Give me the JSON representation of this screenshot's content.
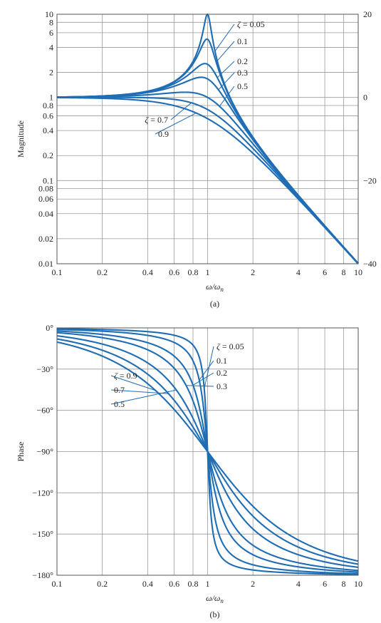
{
  "chart_data": [
    {
      "type": "line",
      "caption": "(a)",
      "xlabel": "ω/ωn",
      "ylabel": "Magnitude",
      "xscale": "log",
      "yscale": "log",
      "xlim": [
        0.1,
        10
      ],
      "ylim": [
        0.01,
        10
      ],
      "x_ticks": [
        0.1,
        0.2,
        0.4,
        0.6,
        0.8,
        1,
        2,
        4,
        6,
        8,
        10
      ],
      "x_tick_labels": [
        "0.1",
        "0.2",
        "0.4",
        "0.6",
        "0.8",
        "1",
        "2",
        "4",
        "6",
        "8",
        "10"
      ],
      "y_ticks": [
        0.01,
        0.02,
        0.04,
        0.06,
        0.08,
        0.1,
        0.2,
        0.4,
        0.6,
        0.8,
        1,
        2,
        4,
        6,
        8,
        10
      ],
      "y_tick_labels": [
        "0.01",
        "0.02",
        "0.04",
        "0.06",
        "0.08",
        "0.1",
        "0.2",
        "0.4",
        "0.6",
        "0.8",
        "1",
        "2",
        "4",
        "6",
        "8",
        "10"
      ],
      "y2_ticks_db": [
        20,
        0,
        -20,
        -40
      ],
      "y2_tick_labels": [
        "20",
        "0",
        "−20",
        "−40"
      ],
      "grid": true,
      "zeta_symbol": "ζ",
      "zeta_values": [
        0.05,
        0.1,
        0.2,
        0.3,
        0.5,
        0.7,
        0.9
      ],
      "zeta_labels": [
        "= 0.05",
        "0.1",
        "0.2",
        "0.3",
        "0.5",
        "= 0.7",
        "0.9"
      ],
      "series": [
        {
          "zeta": 0.05,
          "peak_magnitude": 10.0,
          "x": [
            0.1,
            0.5,
            0.8,
            1,
            1.25,
            2,
            10
          ],
          "y": [
            1.01,
            1.33,
            2.75,
            10.0,
            2.23,
            0.33,
            0.0101
          ]
        },
        {
          "zeta": 0.1,
          "peak_magnitude": 5.03,
          "x": [
            0.1,
            0.5,
            0.8,
            1,
            1.25,
            2,
            10
          ],
          "y": [
            1.01,
            1.33,
            2.6,
            5.0,
            1.99,
            0.33,
            0.0101
          ]
        },
        {
          "zeta": 0.2,
          "peak_magnitude": 2.55,
          "x": [
            0.1,
            0.5,
            0.8,
            1,
            1.25,
            2,
            10
          ],
          "y": [
            1.01,
            1.29,
            2.13,
            2.5,
            1.49,
            0.32,
            0.0101
          ]
        },
        {
          "zeta": 0.3,
          "peak_magnitude": 1.75,
          "x": [
            0.1,
            0.5,
            0.8,
            1,
            1.25,
            2,
            10
          ],
          "y": [
            1.01,
            1.24,
            1.69,
            1.67,
            1.13,
            0.31,
            0.0101
          ]
        },
        {
          "zeta": 0.5,
          "peak_magnitude": 1.15,
          "x": [
            0.1,
            0.5,
            0.8,
            1,
            1.25,
            2,
            10
          ],
          "y": [
            1.01,
            1.11,
            1.1,
            1.0,
            0.73,
            0.28,
            0.0101
          ]
        },
        {
          "zeta": 0.7,
          "peak_magnitude": 1.0,
          "x": [
            0.1,
            0.5,
            0.8,
            1,
            1.25,
            2,
            10
          ],
          "y": [
            1.0,
            0.97,
            0.8,
            0.71,
            0.53,
            0.24,
            0.0101
          ]
        },
        {
          "zeta": 0.9,
          "peak_magnitude": 1.0,
          "x": [
            0.1,
            0.5,
            0.8,
            1,
            1.25,
            2,
            10
          ],
          "y": [
            0.99,
            0.84,
            0.61,
            0.56,
            0.41,
            0.21,
            0.0101
          ]
        }
      ]
    },
    {
      "type": "line",
      "caption": "(b)",
      "xlabel": "ω/ωn",
      "ylabel": "Phase",
      "xscale": "log",
      "xlim": [
        0.1,
        10
      ],
      "ylim": [
        -180,
        0
      ],
      "x_ticks": [
        0.1,
        0.2,
        0.4,
        0.6,
        0.8,
        1,
        2,
        4,
        6,
        8,
        10
      ],
      "x_tick_labels": [
        "0.1",
        "0.2",
        "0.4",
        "0.6",
        "0.8",
        "1",
        "2",
        "4",
        "6",
        "8",
        "10"
      ],
      "y_ticks": [
        0,
        -30,
        -60,
        -90,
        -120,
        -150,
        -180
      ],
      "y_tick_labels": [
        "0°",
        "−30°",
        "−60°",
        "−90°",
        "−120°",
        "−150°",
        "−180°"
      ],
      "grid": true,
      "zeta_symbol": "ζ",
      "zeta_values": [
        0.05,
        0.1,
        0.2,
        0.3,
        0.5,
        0.7,
        0.9
      ],
      "zeta_labels_right": [
        "= 0.05",
        "0.1",
        "0.2",
        "0.3"
      ],
      "zeta_labels_left": [
        "= 0.9",
        "0.7",
        "0.5"
      ],
      "series": [
        {
          "zeta": 0.05,
          "x": [
            0.1,
            0.5,
            0.8,
            1,
            1.25,
            2,
            10
          ],
          "y_deg": [
            -0.6,
            -3.8,
            -15.5,
            -90,
            -164.5,
            -176.2,
            -179.4
          ]
        },
        {
          "zeta": 0.1,
          "x": [
            0.1,
            0.5,
            0.8,
            1,
            1.25,
            2,
            10
          ],
          "y_deg": [
            -1.2,
            -7.6,
            -29.4,
            -90,
            -150.6,
            -172.4,
            -178.8
          ]
        },
        {
          "zeta": 0.2,
          "x": [
            0.1,
            0.5,
            0.8,
            1,
            1.25,
            2,
            10
          ],
          "y_deg": [
            -2.3,
            -14.9,
            -48.4,
            -90,
            -131.6,
            -165.1,
            -177.7
          ]
        },
        {
          "zeta": 0.3,
          "x": [
            0.1,
            0.5,
            0.8,
            1,
            1.25,
            2,
            10
          ],
          "y_deg": [
            -3.5,
            -21.8,
            -59.3,
            -90,
            -120.7,
            -158.2,
            -176.5
          ]
        },
        {
          "zeta": 0.5,
          "x": [
            0.1,
            0.5,
            0.8,
            1,
            1.25,
            2,
            10
          ],
          "y_deg": [
            -5.8,
            -33.7,
            -77.3,
            -90,
            -102.7,
            -146.3,
            -174.2
          ]
        },
        {
          "zeta": 0.7,
          "x": [
            0.1,
            0.5,
            0.8,
            1,
            1.25,
            2,
            10
          ],
          "y_deg": [
            -8.1,
            -43.0,
            -84.0,
            -90,
            -96.0,
            -137.0,
            -171.9
          ]
        },
        {
          "zeta": 0.9,
          "x": [
            0.1,
            0.5,
            0.8,
            1,
            1.25,
            2,
            10
          ],
          "y_deg": [
            -10.3,
            -50.2,
            -87.2,
            -90,
            -92.8,
            -129.8,
            -169.7
          ]
        }
      ]
    }
  ],
  "colors": {
    "curve": "#1f6db5",
    "grid": "#9a9a9a",
    "frame": "#555555",
    "text": "#222222"
  }
}
